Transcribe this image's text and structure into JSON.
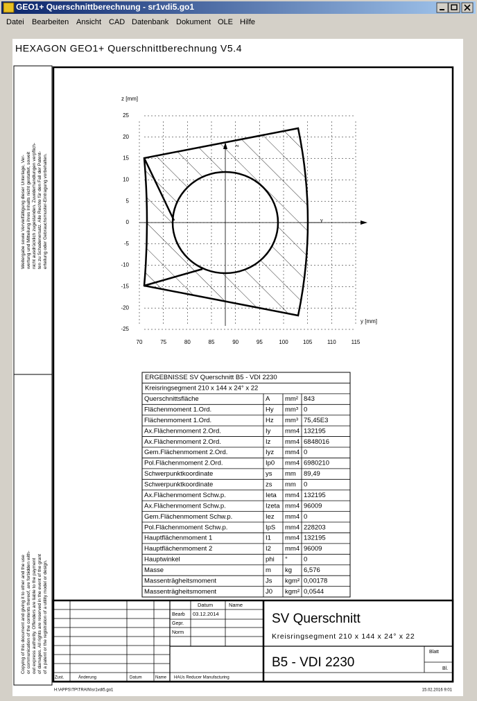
{
  "window": {
    "title": "GEO1+ Querschnittberechnung - sr1vdi5.go1"
  },
  "menu": [
    "Datei",
    "Bearbeiten",
    "Ansicht",
    "CAD",
    "Datenbank",
    "Dokument",
    "OLE",
    "Hilfe"
  ],
  "document": {
    "header": "HEXAGON   GEO1+  Querschnittberechnung  V5.4"
  },
  "notes": {
    "german": [
      "Weitergabe sowie Vervielfältigung dieser Unterlage, Ver-",
      "wertung und Mitteilung ihres Inhalts nicht gestattet, soweit",
      "nicht ausdrücklich zugestanden. Zuwiderhandlungen verpflich-",
      "ten zu Schadenersatz. Alle Rechte für den Fall der Patent-",
      "erteilung oder Gebrauchsmuster-Eintragung vorbehalten."
    ],
    "english": [
      "Copying of this document and giving it to other and the use",
      "or communication of the contents thereof, are forbidden with-",
      "out express authority. Offenders are liable to the payment",
      "of damages. All rights are reserved in the event of the grant",
      "of a patent or the registration of a utility model or design."
    ]
  },
  "plot": {
    "z_axis_label": "z [mm]",
    "y_axis_label": "y [mm]",
    "z_marker": "z",
    "y_marker": "y",
    "xticks": [
      70,
      75,
      80,
      85,
      90,
      95,
      100,
      105,
      110,
      115
    ],
    "zticks": [
      25,
      20,
      15,
      10,
      5,
      0,
      -5,
      -10,
      -15,
      -20,
      -25
    ]
  },
  "results": {
    "title": "ERGEBNISSE  SV Querschnitt B5 - VDI 2230",
    "subtitle": "Kreisringsegment 210 x 144 x 24° x 22",
    "rows": [
      [
        "Querschnittsfläche",
        "A",
        "mm²",
        "843"
      ],
      [
        "Flächenmoment 1.Ord.",
        "Hy",
        "mm³",
        "0"
      ],
      [
        "Flächenmoment 1.Ord.",
        "Hz",
        "mm³",
        "75,45E3"
      ],
      [
        "Ax.Flächenmoment 2.Ord.",
        "Iy",
        "mm4",
        "132195"
      ],
      [
        "Ax.Flächenmoment 2.Ord.",
        "Iz",
        "mm4",
        "6848016"
      ],
      [
        "Gem.Flächenmoment 2.Ord.",
        "Iyz",
        "mm4",
        "0"
      ],
      [
        "Pol.Flächenmoment 2.Ord.",
        "Ip0",
        "mm4",
        "6980210"
      ],
      [
        "Schwerpunktkoordinate",
        "ys",
        "mm",
        "89,49"
      ],
      [
        "Schwerpunktkoordinate",
        "zs",
        "mm",
        "0"
      ],
      [
        "Ax.Flächenmoment Schw.p.",
        "Ieta",
        "mm4",
        "132195"
      ],
      [
        "Ax.Flächenmoment Schw.p.",
        "Izeta",
        "mm4",
        "96009"
      ],
      [
        "Gem.Flächenmoment Schw.p.",
        "Iez",
        "mm4",
        "0"
      ],
      [
        "Pol.Flächenmoment Schw.p.",
        "IpS",
        "mm4",
        "228203"
      ],
      [
        "Hauptflächenmoment 1",
        "I1",
        "mm4",
        "132195"
      ],
      [
        "Hauptflächenmoment 2",
        "I2",
        "mm4",
        "96009"
      ],
      [
        "Hauptwinkel",
        "phi",
        "°",
        "0"
      ],
      [
        "Masse",
        "m",
        "kg",
        "6,576"
      ],
      [
        "Massenträgheitsmoment",
        "Js",
        "kgm²",
        "0,00178"
      ],
      [
        "Massenträgheitsmoment",
        "J0",
        "kgm²",
        "0,0544"
      ]
    ]
  },
  "title_block": {
    "datum": "Datum",
    "name": "Name",
    "bearb": "Bearb",
    "bearb_date": "03.12.2014",
    "gepr": "Gepr.",
    "norm": "Norm",
    "zust": "Zust.",
    "aenderung": "Änderung",
    "datum2": "Datum",
    "name2": "Name",
    "company": "HAUs Reducer Manufacturing",
    "title": "SV Querschnitt",
    "subtitle": "Kreisringsegment 210 x 144 x 24° x 22",
    "drawing_no": "B5 - VDI 2230",
    "blatt": "Blatt",
    "bl": "Bl."
  },
  "footer": {
    "path": "H:\\APPS\\TP\\TRAIN\\sr1vdi5.go1",
    "date": "15.02.2016 9:01"
  }
}
